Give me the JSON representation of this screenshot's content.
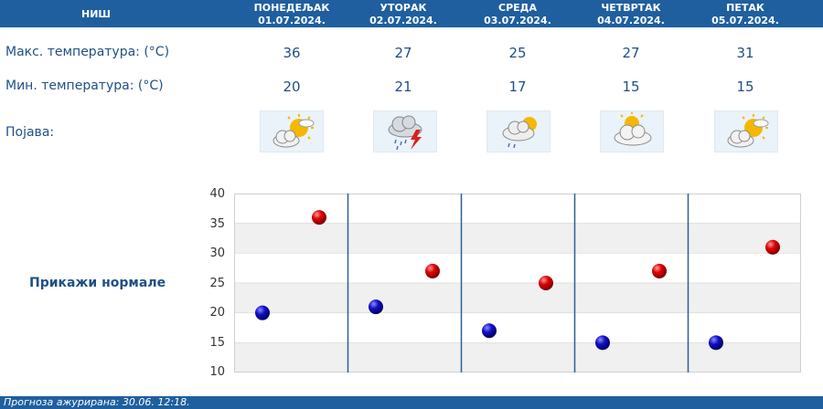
{
  "city": "НИШ",
  "days": [
    {
      "weekday": "ПОНЕДЕЉАК",
      "date": "01.07.2024.",
      "max": "36",
      "min": "20",
      "icon": "sunny-cloud-icon"
    },
    {
      "weekday": "УТОРАК",
      "date": "02.07.2024.",
      "max": "27",
      "min": "21",
      "icon": "thunderstorm-rain-icon"
    },
    {
      "weekday": "СРЕДА",
      "date": "03.07.2024.",
      "max": "25",
      "min": "17",
      "icon": "cloud-sun-light-rain-icon"
    },
    {
      "weekday": "ЧЕТВРТАК",
      "date": "04.07.2024.",
      "max": "27",
      "min": "15",
      "icon": "cloud-sun-icon"
    },
    {
      "weekday": "ПЕТАК",
      "date": "05.07.2024.",
      "max": "31",
      "min": "15",
      "icon": "sunny-cloud-icon"
    }
  ],
  "labels": {
    "max_temp": "Макс. температура: (°C)",
    "min_temp": "Мин. температура: (°C)",
    "phenomenon": "Појава:"
  },
  "show_normals": "Прикажи нормале",
  "footer": "Прогноза ажурирана:  30.06.  12:18.",
  "colors": {
    "header": "#1f5f9f",
    "max_marker": "#cc0000",
    "min_marker": "#0000aa",
    "text": "#1f4f86"
  },
  "chart_data": {
    "type": "scatter",
    "categories": [
      "ПОНЕДЕЉАК",
      "УТОРАК",
      "СРЕДА",
      "ЧЕТВРТАК",
      "ПЕТАК"
    ],
    "series": [
      {
        "values": [
          20,
          21,
          17,
          15,
          15
        ]
      },
      {
        "values": [
          36,
          27,
          25,
          27,
          31
        ]
      }
    ],
    "ylim": [
      10,
      40
    ],
    "yticks": [
      "40",
      "35",
      "30",
      "25",
      "20",
      "15",
      "10"
    ],
    "grid": true,
    "title": "",
    "xlabel": "",
    "ylabel": ""
  }
}
